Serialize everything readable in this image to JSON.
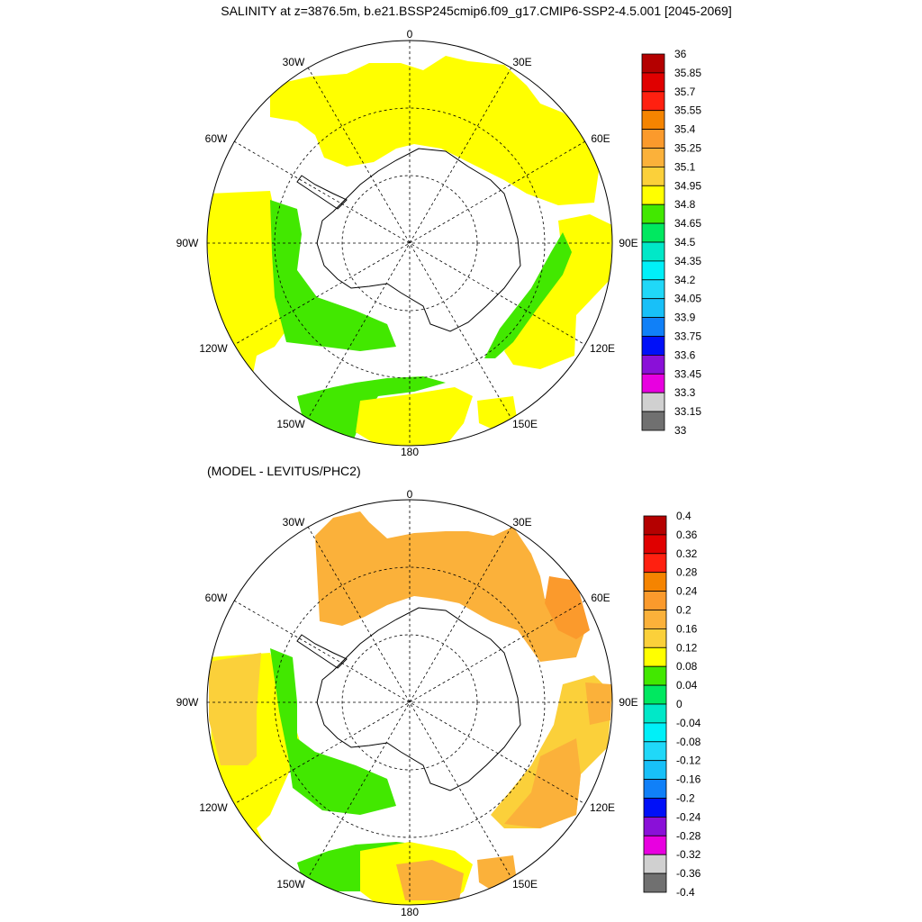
{
  "title": "SALINITY at z=3876.5m, b.e21.BSSP245cmip6.f09_g17.CMIP6-SSP2-4.5.001 [2045-2069]",
  "subtitle": "(MODEL - LEVITUS/PHC2)",
  "lon_labels": [
    "0",
    "30E",
    "60E",
    "90E",
    "120E",
    "150E",
    "180",
    "150W",
    "120W",
    "90W",
    "60W",
    "30W"
  ],
  "colorbar_top": {
    "labels": [
      "36",
      "35.85",
      "35.7",
      "35.55",
      "35.4",
      "35.25",
      "35.1",
      "34.95",
      "34.8",
      "34.65",
      "34.5",
      "34.35",
      "34.2",
      "34.05",
      "33.9",
      "33.75",
      "33.6",
      "33.45",
      "33.3",
      "33.15",
      "33"
    ],
    "colors": [
      "#b40000",
      "#e00000",
      "#ff2010",
      "#f58400",
      "#fb9a2c",
      "#fbb13a",
      "#fbd03a",
      "#ffff00",
      "#42e800",
      "#00e860",
      "#00e8c8",
      "#00f0f8",
      "#20d8f8",
      "#18c0f8",
      "#1080f8",
      "#0010f8",
      "#8a10d8",
      "#e800e0",
      "#d0d0d0",
      "#707070"
    ]
  },
  "colorbar_bottom": {
    "labels": [
      "0.4",
      "0.36",
      "0.32",
      "0.28",
      "0.24",
      "0.2",
      "0.16",
      "0.12",
      "0.08",
      "0.04",
      "0",
      "-0.04",
      "-0.08",
      "-0.12",
      "-0.16",
      "-0.2",
      "-0.24",
      "-0.28",
      "-0.32",
      "-0.36",
      "-0.4"
    ],
    "colors": [
      "#b40000",
      "#e00000",
      "#ff2010",
      "#f58400",
      "#fb9a2c",
      "#fbb13a",
      "#fbd03a",
      "#ffff00",
      "#42e800",
      "#00e860",
      "#00e8c8",
      "#00f0f8",
      "#20d8f8",
      "#18c0f8",
      "#1080f8",
      "#0010f8",
      "#8a10d8",
      "#e800e0",
      "#d0d0d0",
      "#707070"
    ]
  },
  "fields": {
    "yellow": "#ffff00",
    "green": "#42e800",
    "orange_light": "#fbb13a",
    "orange": "#fb9a2c",
    "gold": "#fbd03a"
  }
}
